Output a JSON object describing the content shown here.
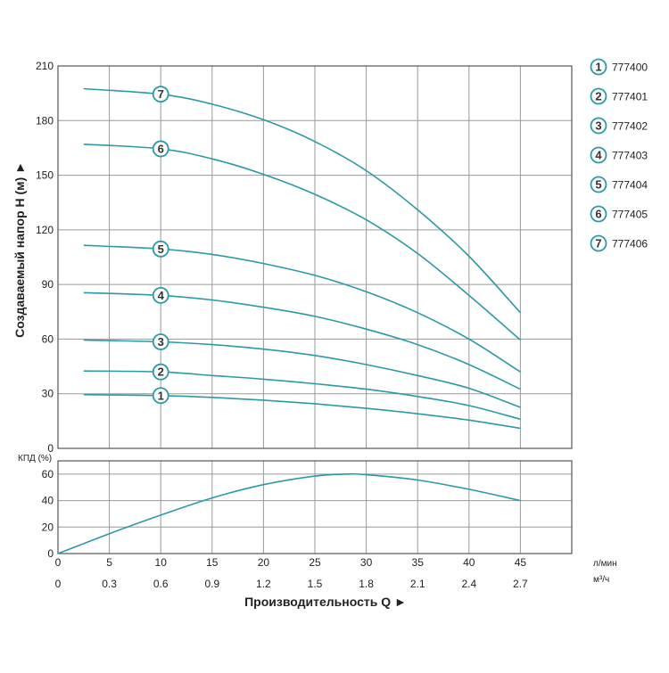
{
  "colors": {
    "curve": "#2a9aa6",
    "grid": "#9a9a9a",
    "frame": "#555555",
    "marker_fill": "#ffffff",
    "text": "#222222"
  },
  "chart_data": [
    {
      "type": "line",
      "ylabel": "Создаваемый напор H (м) ►",
      "ylim": [
        0,
        210
      ],
      "yticks": [
        0,
        30,
        60,
        90,
        120,
        150,
        180,
        210
      ],
      "xlim": [
        0,
        50
      ],
      "grid": true,
      "series": [
        {
          "name": "1",
          "x": [
            2.5,
            10,
            15,
            20,
            25,
            30,
            35,
            40,
            45
          ],
          "values": [
            29.5,
            29,
            28,
            26.5,
            24.5,
            22,
            19,
            15.5,
            11
          ]
        },
        {
          "name": "2",
          "x": [
            2.5,
            10,
            15,
            20,
            25,
            30,
            35,
            40,
            45
          ],
          "values": [
            42.5,
            42,
            40,
            38,
            35.5,
            32.5,
            28.5,
            23.5,
            16
          ]
        },
        {
          "name": "3",
          "x": [
            2.5,
            10,
            15,
            20,
            25,
            30,
            35,
            40,
            45
          ],
          "values": [
            59.5,
            58.5,
            57,
            54.5,
            51,
            46,
            40,
            33,
            22.5
          ]
        },
        {
          "name": "4",
          "x": [
            2.5,
            10,
            15,
            20,
            25,
            30,
            35,
            40,
            45
          ],
          "values": [
            85.5,
            84,
            81.5,
            77.5,
            72.5,
            65.5,
            57,
            46,
            32.5
          ]
        },
        {
          "name": "5",
          "x": [
            2.5,
            10,
            15,
            20,
            25,
            30,
            35,
            40,
            45
          ],
          "values": [
            111.5,
            109.5,
            106.5,
            101.5,
            95,
            86,
            74.5,
            60,
            42
          ]
        },
        {
          "name": "6",
          "x": [
            2.5,
            10,
            15,
            20,
            25,
            30,
            35,
            40,
            45
          ],
          "values": [
            167,
            164.5,
            159,
            150.5,
            139.5,
            125.5,
            107,
            84,
            59.5
          ]
        },
        {
          "name": "7",
          "x": [
            2.5,
            10,
            15,
            20,
            25,
            30,
            35,
            40,
            45
          ],
          "values": [
            197.5,
            194.5,
            189,
            180.5,
            168.5,
            152.5,
            131,
            105.5,
            74.5
          ]
        }
      ],
      "markers": [
        {
          "label": "1",
          "x": 10,
          "y": 29
        },
        {
          "label": "2",
          "x": 10,
          "y": 42
        },
        {
          "label": "3",
          "x": 10,
          "y": 58.5
        },
        {
          "label": "4",
          "x": 10,
          "y": 84
        },
        {
          "label": "5",
          "x": 10,
          "y": 109.5
        },
        {
          "label": "6",
          "x": 10,
          "y": 164.5
        },
        {
          "label": "7",
          "x": 10,
          "y": 194.5
        }
      ],
      "legend": {
        "placement": "right",
        "entries": [
          {
            "num": "1",
            "label": "777400"
          },
          {
            "num": "2",
            "label": "777401"
          },
          {
            "num": "3",
            "label": "777402"
          },
          {
            "num": "4",
            "label": "777403"
          },
          {
            "num": "5",
            "label": "777404"
          },
          {
            "num": "6",
            "label": "777405"
          },
          {
            "num": "7",
            "label": "777406"
          }
        ]
      }
    },
    {
      "type": "line",
      "ylabel": "КПД (%)",
      "ylim": [
        0,
        70
      ],
      "yticks": [
        0,
        20,
        40,
        60
      ],
      "xlim": [
        0,
        50
      ],
      "grid": true,
      "series": [
        {
          "name": "",
          "x": [
            0,
            5,
            10,
            15,
            20,
            25,
            28,
            30,
            35,
            40,
            45
          ],
          "values": [
            0,
            15,
            29,
            42,
            52,
            58.5,
            60,
            59.5,
            55.5,
            48.5,
            40
          ]
        }
      ]
    }
  ],
  "x_axis": {
    "lmin_ticks": [
      "0",
      "5",
      "10",
      "15",
      "20",
      "25",
      "30",
      "35",
      "40",
      "45"
    ],
    "lmin_values": [
      0,
      5,
      10,
      15,
      20,
      25,
      30,
      35,
      40,
      45
    ],
    "m3h_ticks": [
      "0",
      "0.3",
      "0.6",
      "0.9",
      "1.2",
      "1.5",
      "1.8",
      "2.1",
      "2.4",
      "2.7"
    ],
    "unit_lmin": "л/мин",
    "unit_m3h": "м³/ч",
    "title": "Производительность Q ►"
  }
}
